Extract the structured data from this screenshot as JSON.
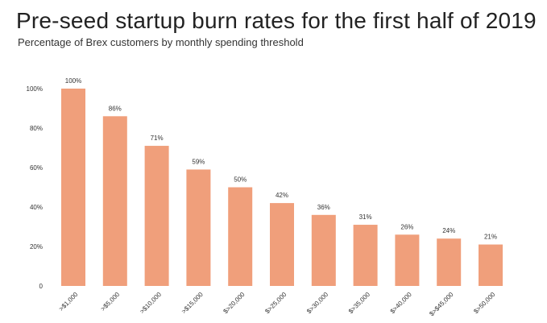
{
  "header": {
    "title": "Pre-seed startup burn rates for the first half of 2019",
    "subtitle": "Percentage of Brex customers by monthly spending threshold"
  },
  "chart_data": {
    "type": "bar",
    "title": "Pre-seed startup burn rates for the first half of 2019",
    "subtitle": "Percentage of Brex customers by monthly spending threshold",
    "xlabel": "",
    "ylabel": "",
    "categories": [
      ">$1,000",
      ">$5,000",
      ">$10,000",
      ">$15,000",
      "$>20,000",
      "$>25,000",
      "$>30,000",
      "$>35,000",
      "$>40,000",
      "$>$45,000",
      "$>50,000"
    ],
    "values": [
      100,
      86,
      71,
      59,
      50,
      42,
      36,
      31,
      26,
      24,
      21
    ],
    "value_labels": [
      "100%",
      "86%",
      "71%",
      "59%",
      "50%",
      "42%",
      "36%",
      "31%",
      "26%",
      "24%",
      "21%"
    ],
    "ylim": [
      0,
      100
    ],
    "yticks": [
      0,
      20,
      40,
      60,
      80,
      100
    ],
    "ytick_labels": [
      "0",
      "20%",
      "40%",
      "60%",
      "80%",
      "100%"
    ],
    "grid": false,
    "legend": "none",
    "bar_color": "#f09f7b"
  }
}
